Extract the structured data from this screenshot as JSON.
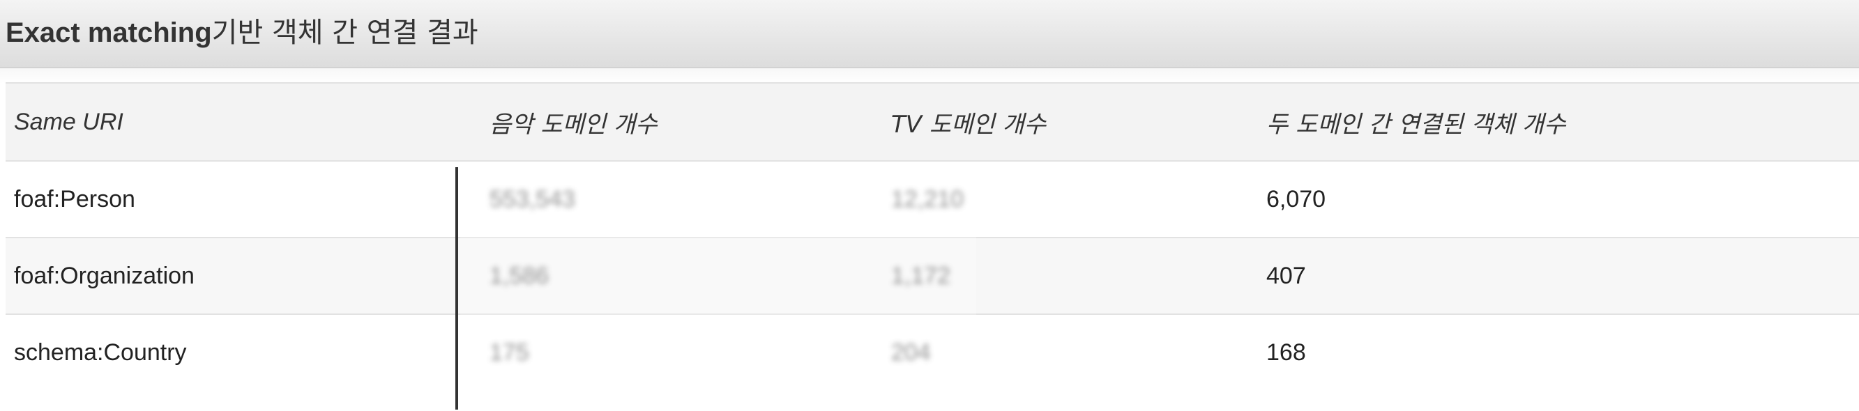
{
  "title": {
    "latin": "Exact matching",
    "korean": "기반 객체 간 연결 결과"
  },
  "table": {
    "headers": [
      "Same URI",
      "음악 도메인 개수",
      "TV 도메인 개수",
      "두 도메인 간 연결된 객체 개수"
    ],
    "rows": [
      {
        "uri": "foaf:Person",
        "music": "553,543",
        "tv": "12,210",
        "linked": "6,070"
      },
      {
        "uri": "foaf:Organization",
        "music": "1,586",
        "tv": "1,172",
        "linked": "407"
      },
      {
        "uri": "schema:Country",
        "music": "175",
        "tv": "204",
        "linked": "168"
      }
    ]
  }
}
